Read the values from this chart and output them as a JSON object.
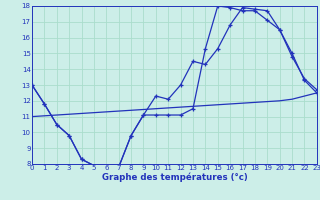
{
  "xlabel": "Graphe des températures (°c)",
  "bg_color": "#cceee8",
  "grid_color": "#aaddcc",
  "line_color": "#2233bb",
  "xlim": [
    0,
    23
  ],
  "ylim": [
    8,
    18
  ],
  "yticks": [
    8,
    9,
    10,
    11,
    12,
    13,
    14,
    15,
    16,
    17,
    18
  ],
  "xticks": [
    0,
    1,
    2,
    3,
    4,
    5,
    6,
    7,
    8,
    9,
    10,
    11,
    12,
    13,
    14,
    15,
    16,
    17,
    18,
    19,
    20,
    21,
    22,
    23
  ],
  "line1_x": [
    0,
    1,
    2,
    3,
    4,
    5,
    6,
    7,
    8,
    9,
    10,
    11,
    12,
    13,
    14,
    15,
    16,
    17,
    18,
    19,
    20,
    21,
    22,
    23
  ],
  "line1_y": [
    13,
    11.8,
    10.5,
    9.8,
    8.3,
    7.9,
    7.8,
    7.8,
    9.8,
    11.1,
    11.1,
    11.1,
    11.1,
    11.5,
    15.3,
    18.0,
    17.9,
    17.7,
    17.7,
    17.1,
    16.5,
    15.0,
    13.3,
    12.5
  ],
  "line2_x": [
    0,
    1,
    2,
    3,
    4,
    5,
    6,
    7,
    8,
    9,
    10,
    11,
    12,
    13,
    14,
    15,
    16,
    17,
    18,
    19,
    20,
    21,
    22,
    23
  ],
  "line2_y": [
    13,
    11.8,
    10.5,
    9.8,
    8.3,
    7.9,
    7.8,
    7.8,
    9.8,
    11.1,
    12.3,
    12.1,
    13.0,
    14.5,
    14.3,
    15.3,
    16.8,
    17.9,
    17.8,
    17.7,
    16.5,
    14.8,
    13.4,
    12.7
  ],
  "line3_x": [
    0,
    1,
    2,
    3,
    4,
    5,
    6,
    7,
    8,
    9,
    10,
    11,
    12,
    13,
    14,
    15,
    16,
    17,
    18,
    19,
    20,
    21,
    22,
    23
  ],
  "line3_y": [
    11.0,
    11.05,
    11.1,
    11.15,
    11.2,
    11.25,
    11.3,
    11.35,
    11.4,
    11.45,
    11.5,
    11.55,
    11.6,
    11.65,
    11.7,
    11.75,
    11.8,
    11.85,
    11.9,
    11.95,
    12.0,
    12.1,
    12.3,
    12.5
  ]
}
